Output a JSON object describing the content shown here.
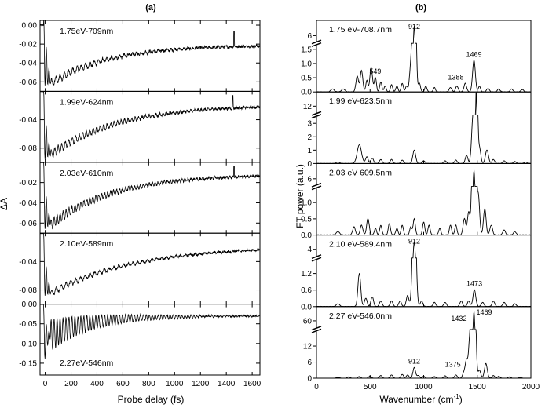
{
  "chart_data": [
    {
      "type": "line",
      "title": "(a)",
      "xlabel": "Probe delay (fs)",
      "ylabel": "ΔA",
      "xlim": [
        -40,
        1660
      ],
      "x_ticks": [
        0,
        200,
        400,
        600,
        800,
        1000,
        1200,
        1400,
        1600
      ],
      "grid": false,
      "panels": [
        {
          "label": "1.75eV-709nm",
          "ylim": [
            -0.07,
            0.005
          ],
          "y_ticks": [
            0.0,
            -0.02,
            -0.04,
            -0.06
          ],
          "y_tick_labels": [
            "0.00",
            "-0.02",
            "-0.04",
            "-0.06"
          ],
          "spike_max": 0.03,
          "spike_min": -0.065,
          "dip": -0.062,
          "final": -0.021,
          "tau": 450,
          "osc_amp": 0.004,
          "noise": 0.0015,
          "period": 33,
          "spike_at": 1460
        },
        {
          "label": "1.99eV-624nm",
          "ylim": [
            -0.1,
            0.0
          ],
          "y_ticks": [
            -0.04,
            -0.08
          ],
          "y_tick_labels": [
            "-0.04",
            "-0.08"
          ],
          "spike_max": 0.01,
          "spike_min": -0.1,
          "dip": -0.09,
          "final": -0.019,
          "tau": 520,
          "osc_amp": 0.006,
          "noise": 0.0018,
          "period": 27,
          "spike_at": 1450
        },
        {
          "label": "2.03eV-610nm",
          "ylim": [
            -0.07,
            0.0
          ],
          "y_ticks": [
            -0.02,
            -0.04,
            -0.06
          ],
          "y_tick_labels": [
            "-0.02",
            "-0.04",
            "-0.06"
          ],
          "spike_max": 0.005,
          "spike_min": -0.068,
          "dip": -0.062,
          "final": -0.012,
          "tau": 480,
          "osc_amp": 0.005,
          "noise": 0.0012,
          "period": 23,
          "spike_at": 1460
        },
        {
          "label": "2.10eV-589nm",
          "ylim": [
            -0.1,
            0.0
          ],
          "y_ticks": [
            -0.04,
            -0.08
          ],
          "y_tick_labels": [
            "-0.04",
            "-0.08"
          ],
          "spike_max": 0.005,
          "spike_min": -0.09,
          "dip": -0.085,
          "final": -0.018,
          "tau": 650,
          "osc_amp": 0.004,
          "noise": 0.0015,
          "period": 37,
          "spike_at": null
        },
        {
          "label": "2.27eV-546nm",
          "ylim": [
            -0.18,
            0.0
          ],
          "y_ticks": [
            0.0,
            -0.05,
            -0.1,
            -0.15
          ],
          "y_tick_labels": [
            "0.00",
            "-0.05",
            "-0.10",
            "-0.15"
          ],
          "spike_max": -0.01,
          "spike_min": -0.17,
          "dip": -0.08,
          "final": -0.03,
          "tau": 300,
          "osc_amp": 0.04,
          "noise": 0.002,
          "period": 23,
          "spike_at": null
        }
      ]
    },
    {
      "type": "line",
      "title": "(b)",
      "xlabel": "Wavenumber (cm",
      "xlabel_sup": "-1",
      "xlabel_end": ")",
      "ylabel": "FT power (a.u.)",
      "xlim": [
        0,
        2000
      ],
      "x_ticks": [
        0,
        500,
        1000,
        1500,
        2000
      ],
      "grid": false,
      "panels": [
        {
          "label": "1.75 eV-708.7nm",
          "y_ticks": [
            0.0,
            0.5,
            1.0,
            1.5,
            6
          ],
          "y_tick_labels": [
            "0.0",
            "0.5",
            "1.0",
            "1.5",
            "6"
          ],
          "lower_range": [
            0,
            1.6
          ],
          "upper_range": [
            5.6,
            7
          ],
          "peaks": [
            [
              380,
              0.55,
              12
            ],
            [
              420,
              0.75,
              12
            ],
            [
              470,
              0.4,
              10
            ],
            [
              510,
              0.85,
              12
            ],
            [
              549,
              0.5,
              10
            ],
            [
              600,
              0.35,
              10
            ],
            [
              640,
              0.2,
              10
            ],
            [
              700,
              0.25,
              10
            ],
            [
              750,
              0.2,
              10
            ],
            [
              800,
              0.3,
              10
            ],
            [
              840,
              0.2,
              10
            ],
            [
              880,
              0.9,
              12
            ],
            [
              912,
              6.6,
              13
            ],
            [
              960,
              0.3,
              10
            ],
            [
              1020,
              0.2,
              10
            ],
            [
              1100,
              0.15,
              10
            ],
            [
              1250,
              0.15,
              12
            ],
            [
              1310,
              0.2,
              12
            ],
            [
              1388,
              0.3,
              12
            ],
            [
              1469,
              1.1,
              13
            ],
            [
              1520,
              0.2,
              10
            ],
            [
              1600,
              0.12,
              12
            ],
            [
              1700,
              0.1,
              12
            ],
            [
              1820,
              0.1,
              12
            ],
            [
              1920,
              0.08,
              12
            ],
            [
              150,
              0.1,
              15
            ],
            [
              250,
              0.1,
              15
            ]
          ],
          "annotations": [
            {
              "x": 549,
              "text": "549"
            },
            {
              "x": 912,
              "text": "912"
            },
            {
              "x": 1388,
              "text": "1388"
            },
            {
              "x": 1469,
              "text": "1469"
            }
          ]
        },
        {
          "label": "1.99 eV-623.5nm",
          "y_ticks": [
            0,
            1,
            2,
            3,
            12
          ],
          "y_tick_labels": [
            "0",
            "1",
            "2",
            "3",
            "12"
          ],
          "lower_range": [
            0,
            3.4
          ],
          "upper_range": [
            11.5,
            13
          ],
          "peaks": [
            [
              400,
              1.4,
              20
            ],
            [
              470,
              0.5,
              12
            ],
            [
              520,
              0.4,
              12
            ],
            [
              600,
              0.3,
              12
            ],
            [
              700,
              0.3,
              12
            ],
            [
              800,
              0.25,
              12
            ],
            [
              912,
              1.0,
              13
            ],
            [
              1000,
              0.2,
              12
            ],
            [
              1200,
              0.2,
              12
            ],
            [
              1300,
              0.25,
              12
            ],
            [
              1400,
              0.6,
              12
            ],
            [
              1460,
              3.5,
              13
            ],
            [
              1490,
              12.8,
              10
            ],
            [
              1520,
              1.2,
              12
            ],
            [
              1590,
              1.0,
              14
            ],
            [
              1650,
              0.3,
              12
            ],
            [
              1750,
              0.2,
              12
            ],
            [
              1850,
              0.15,
              12
            ],
            [
              1950,
              0.1,
              12
            ],
            [
              200,
              0.1,
              15
            ]
          ],
          "annotations": []
        },
        {
          "label": "2.03 eV-609.5nm",
          "y_ticks": [
            0.0,
            0.5,
            1.0,
            6
          ],
          "y_tick_labels": [
            "0.0",
            "0.5",
            "1.0",
            "6"
          ],
          "lower_range": [
            0,
            1.4
          ],
          "upper_range": [
            5.6,
            7
          ],
          "peaks": [
            [
              350,
              0.25,
              12
            ],
            [
              420,
              0.3,
              12
            ],
            [
              480,
              0.5,
              12
            ],
            [
              550,
              0.2,
              10
            ],
            [
              600,
              0.3,
              10
            ],
            [
              680,
              0.35,
              10
            ],
            [
              750,
              0.2,
              10
            ],
            [
              800,
              0.3,
              10
            ],
            [
              880,
              0.25,
              10
            ],
            [
              912,
              0.5,
              10
            ],
            [
              1000,
              0.4,
              10
            ],
            [
              1050,
              0.3,
              10
            ],
            [
              1150,
              0.2,
              10
            ],
            [
              1250,
              0.3,
              10
            ],
            [
              1300,
              0.3,
              10
            ],
            [
              1380,
              0.5,
              12
            ],
            [
              1420,
              0.7,
              12
            ],
            [
              1469,
              6.5,
              14
            ],
            [
              1510,
              1.2,
              12
            ],
            [
              1570,
              0.8,
              12
            ],
            [
              1630,
              0.3,
              12
            ],
            [
              1750,
              0.15,
              12
            ],
            [
              1850,
              0.1,
              12
            ],
            [
              200,
              0.1,
              15
            ]
          ],
          "annotations": []
        },
        {
          "label": "2.10 eV-589.4nm",
          "y_ticks": [
            0.0,
            0.6,
            1.2,
            4
          ],
          "y_tick_labels": [
            "0.0",
            "0.6",
            "1.2",
            "4"
          ],
          "lower_range": [
            0,
            1.65
          ],
          "upper_range": [
            3.5,
            5
          ],
          "peaks": [
            [
              400,
              1.2,
              13
            ],
            [
              460,
              0.3,
              12
            ],
            [
              520,
              0.35,
              12
            ],
            [
              600,
              0.2,
              12
            ],
            [
              700,
              0.2,
              12
            ],
            [
              780,
              0.2,
              12
            ],
            [
              850,
              0.4,
              12
            ],
            [
              912,
              4.5,
              15
            ],
            [
              980,
              0.2,
              12
            ],
            [
              1100,
              0.15,
              12
            ],
            [
              1200,
              0.15,
              12
            ],
            [
              1350,
              0.2,
              12
            ],
            [
              1420,
              0.2,
              12
            ],
            [
              1473,
              0.6,
              13
            ],
            [
              1550,
              0.15,
              12
            ],
            [
              1650,
              0.2,
              12
            ],
            [
              1750,
              0.15,
              12
            ],
            [
              1850,
              0.1,
              12
            ],
            [
              200,
              0.1,
              15
            ]
          ],
          "annotations": [
            {
              "x": 912,
              "text": "912"
            },
            {
              "x": 1473,
              "text": "1473"
            }
          ]
        },
        {
          "label": "2.27 eV-546.0nm",
          "y_ticks": [
            0,
            6,
            12,
            60
          ],
          "y_tick_labels": [
            "0",
            "6",
            "12",
            "60"
          ],
          "lower_range": [
            0,
            17
          ],
          "upper_range": [
            55,
            70
          ],
          "peaks": [
            [
              200,
              0.3,
              15
            ],
            [
              300,
              0.5,
              12
            ],
            [
              400,
              0.6,
              12
            ],
            [
              500,
              0.8,
              12
            ],
            [
              600,
              1.0,
              12
            ],
            [
              700,
              1.2,
              12
            ],
            [
              800,
              1.4,
              12
            ],
            [
              850,
              1.2,
              12
            ],
            [
              912,
              4.0,
              12
            ],
            [
              950,
              1.0,
              12
            ],
            [
              1000,
              0.7,
              12
            ],
            [
              1100,
              0.6,
              12
            ],
            [
              1200,
              0.9,
              12
            ],
            [
              1300,
              1.2,
              12
            ],
            [
              1375,
              2.0,
              12
            ],
            [
              1400,
              6.5,
              12
            ],
            [
              1432,
              16,
              12
            ],
            [
              1469,
              66,
              13
            ],
            [
              1520,
              3.0,
              12
            ],
            [
              1580,
              5.5,
              13
            ],
            [
              1650,
              1.0,
              12
            ],
            [
              1700,
              0.7,
              12
            ],
            [
              1800,
              0.5,
              12
            ],
            [
              1900,
              0.3,
              12
            ]
          ],
          "annotations": [
            {
              "x": 912,
              "text": "912"
            },
            {
              "x": 1375,
              "text": "1375"
            },
            {
              "x": 1432,
              "text": "1432"
            },
            {
              "x": 1469,
              "text": "1469"
            }
          ]
        }
      ]
    }
  ]
}
